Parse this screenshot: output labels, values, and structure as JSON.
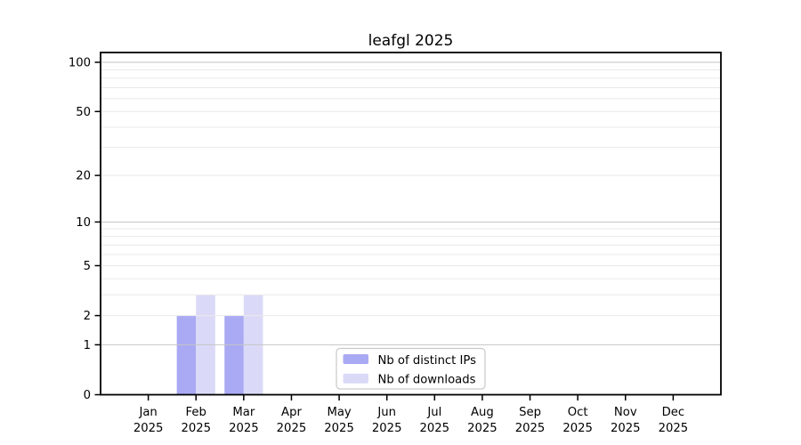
{
  "chart_data": {
    "type": "bar",
    "title": "leafgl 2025",
    "x_axis": {
      "categories": [
        "Jan",
        "Feb",
        "Mar",
        "Apr",
        "May",
        "Jun",
        "Jul",
        "Aug",
        "Sep",
        "Oct",
        "Nov",
        "Dec"
      ],
      "year": "2025"
    },
    "y_axis": {
      "scale": "log1p",
      "ylim": [
        0,
        115
      ],
      "ticks": [
        0,
        1,
        2,
        5,
        10,
        20,
        50,
        100
      ],
      "minor_gridlines": [
        3,
        4,
        6,
        7,
        8,
        9,
        30,
        40,
        60,
        70,
        80,
        90
      ],
      "decade_gridlines": [
        1,
        10,
        100
      ]
    },
    "series": [
      {
        "name": "Nb of distinct IPs",
        "color": "#a9a9f4",
        "values": [
          0,
          2,
          2,
          0,
          0,
          0,
          0,
          0,
          0,
          0,
          0,
          0
        ]
      },
      {
        "name": "Nb of downloads",
        "color": "#dadaf8",
        "values": [
          0,
          3,
          3,
          0,
          0,
          0,
          0,
          0,
          0,
          0,
          0,
          0
        ]
      }
    ],
    "legend": {
      "border_color": "#c9c9c9",
      "background": "#ffffff"
    },
    "grid": {
      "major_color": "#c6c6c6",
      "minor_color": "#e9e9e9"
    },
    "axis_color": "#000000"
  }
}
